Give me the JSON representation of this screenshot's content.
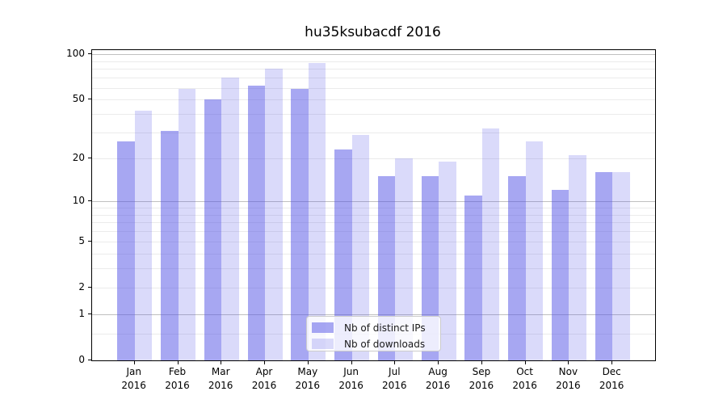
{
  "chart_data": {
    "type": "bar",
    "title": "hu35ksubacdf 2016",
    "categories": [
      "Jan",
      "Feb",
      "Mar",
      "Apr",
      "May",
      "Jun",
      "Jul",
      "Aug",
      "Sep",
      "Oct",
      "Nov",
      "Dec"
    ],
    "year_label": "2016",
    "series": [
      {
        "name": "Nb of distinct IPs",
        "values": [
          26,
          31,
          50,
          62,
          59,
          23,
          15,
          15,
          11,
          15,
          12,
          16
        ],
        "color": "#5050e6",
        "opacity": 0.5
      },
      {
        "name": "Nb of downloads",
        "values": [
          42,
          59,
          70,
          80,
          87,
          29,
          20,
          19,
          32,
          26,
          21,
          16
        ],
        "color": "#5050e6",
        "opacity": 0.21
      }
    ],
    "y_scale": "log1p",
    "ylim": [
      0,
      106
    ],
    "y_tick_values": [
      0,
      1,
      2,
      5,
      10,
      20,
      50,
      100
    ],
    "y_tick_labels": [
      "0",
      "1",
      "2",
      "5",
      "10",
      "20",
      "50",
      "100"
    ],
    "major_gridline_values": [
      1,
      10,
      100
    ],
    "minor_gridline_values": [
      0.5,
      2,
      3,
      4,
      5,
      6,
      7,
      8,
      9,
      20,
      30,
      40,
      50,
      60,
      70,
      80,
      90
    ],
    "grid": true,
    "legend_position": "lower-center"
  },
  "colors": {
    "bar_base": "#5050e6",
    "distinct_ips_rendered": "#a8a8f2",
    "downloads_rendered": "#dcdcf8",
    "major_grid": "#c0c0c0",
    "minor_grid": "#ebebeb",
    "spine": "#000000",
    "text": "#000000",
    "legend_background": "rgba(255,255,255,0.8)",
    "legend_border": "#cccccc"
  }
}
